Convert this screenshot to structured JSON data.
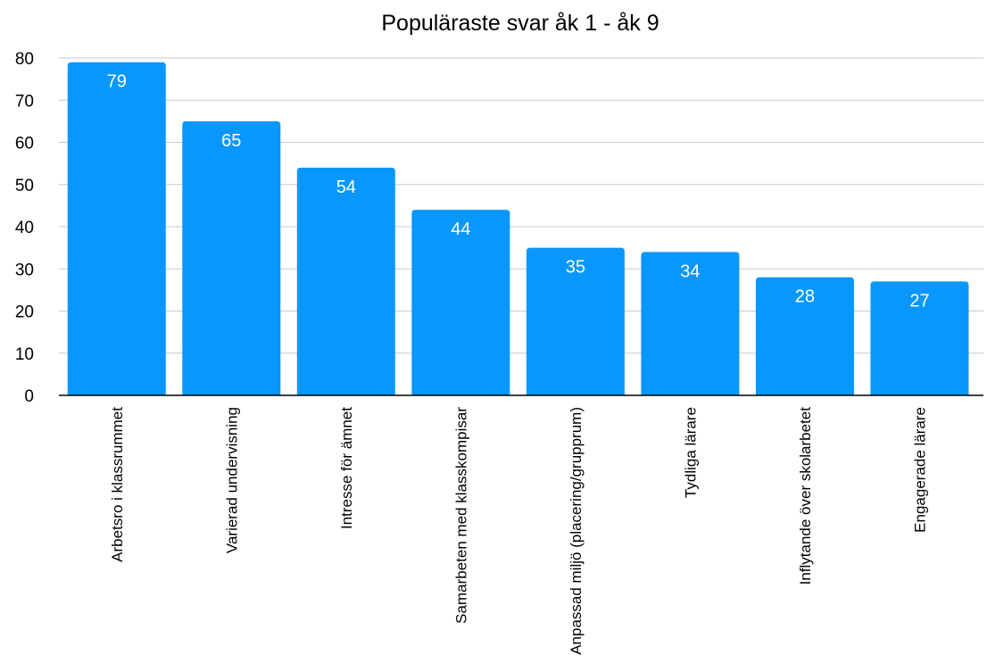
{
  "chart_data": {
    "type": "bar",
    "title": "Populäraste svar åk 1 - åk 9",
    "xlabel": "",
    "ylabel": "",
    "ylim": [
      0,
      80
    ],
    "yticks": [
      0,
      10,
      20,
      30,
      40,
      50,
      60,
      70,
      80
    ],
    "grid": true,
    "categories": [
      "Arbetsro i klassrummet",
      "Varierad undervisning",
      "Intresse för ämnet",
      "Samarbeten med klasskompisar",
      "Anpassad miljö (placering/grupprum)",
      "Tydliga lärare",
      "Inflytande över skolarbetet",
      "Engagerade lärare"
    ],
    "values": [
      79,
      65,
      54,
      44,
      35,
      34,
      28,
      27
    ],
    "bar_color": "#0997fb",
    "label_color": "#ffffff"
  }
}
